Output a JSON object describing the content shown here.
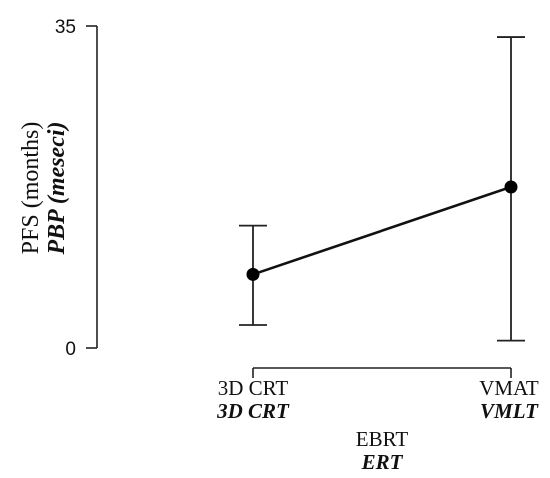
{
  "chart_data": {
    "type": "line",
    "categories": [
      "3D CRT",
      "VMAT"
    ],
    "categories_secondary": [
      "3D CRT",
      "VMLT"
    ],
    "values": [
      8,
      17.5
    ],
    "error_low": [
      2.5,
      0.8
    ],
    "error_high": [
      13.3,
      33.8
    ],
    "ylim": [
      0,
      35
    ],
    "yticks": [
      "0",
      "35"
    ],
    "ylabel": "PFS (months)",
    "ylabel_secondary": "PBP (meseci)",
    "xlabel": "EBRT",
    "xlabel_secondary": "ERT",
    "grid": false,
    "colors": {
      "line": "#111111",
      "marker": "#000000"
    }
  }
}
